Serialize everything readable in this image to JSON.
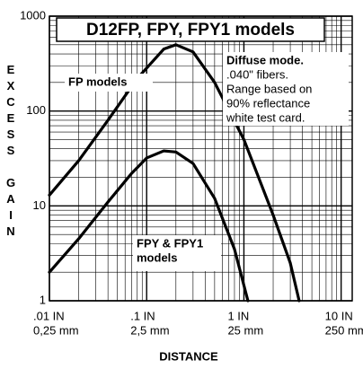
{
  "chart_data": {
    "type": "line",
    "title": "D12FP, FPY, FPY1 models",
    "xlabel": "DISTANCE",
    "ylabel": "EXCESS GAIN",
    "log_x": true,
    "log_y": true,
    "grid": true,
    "xlim": [
      0.01,
      13
    ],
    "ylim": [
      1,
      1000
    ],
    "xticks": [
      {
        "value": 0.01,
        "label": ".01 IN"
      },
      {
        "value": 0.1,
        "label": ".1 IN"
      },
      {
        "value": 1,
        "label": "1 IN"
      },
      {
        "value": 10,
        "label": "10 IN"
      }
    ],
    "xtick_sublabels": [
      "0,25 mm",
      "2,5 mm",
      "25 mm",
      "250 mm"
    ],
    "yticks": [
      1,
      10,
      100,
      1000
    ],
    "series": [
      {
        "name": "FP models",
        "color": "#000000",
        "x": [
          0.01,
          0.02,
          0.04,
          0.08,
          0.15,
          0.2,
          0.3,
          0.5,
          1,
          2,
          3,
          3.7
        ],
        "values": [
          13,
          30,
          80,
          220,
          450,
          500,
          420,
          200,
          50,
          8,
          2.5,
          1
        ]
      },
      {
        "name": "FPY & FPY1 models",
        "color": "#000000",
        "x": [
          0.01,
          0.02,
          0.04,
          0.07,
          0.1,
          0.15,
          0.2,
          0.3,
          0.5,
          0.8,
          1.1
        ],
        "values": [
          2,
          4.5,
          11,
          22,
          32,
          38,
          37,
          28,
          12,
          3.5,
          1
        ]
      }
    ],
    "annotations": [
      {
        "lines": [
          "FP models"
        ]
      },
      {
        "lines": [
          "FPY & FPY1",
          "models"
        ]
      },
      {
        "lines": [
          "Diffuse mode.",
          ".040\" fibers.",
          "Range based on",
          "90% reflectance",
          "white test card."
        ]
      }
    ]
  }
}
